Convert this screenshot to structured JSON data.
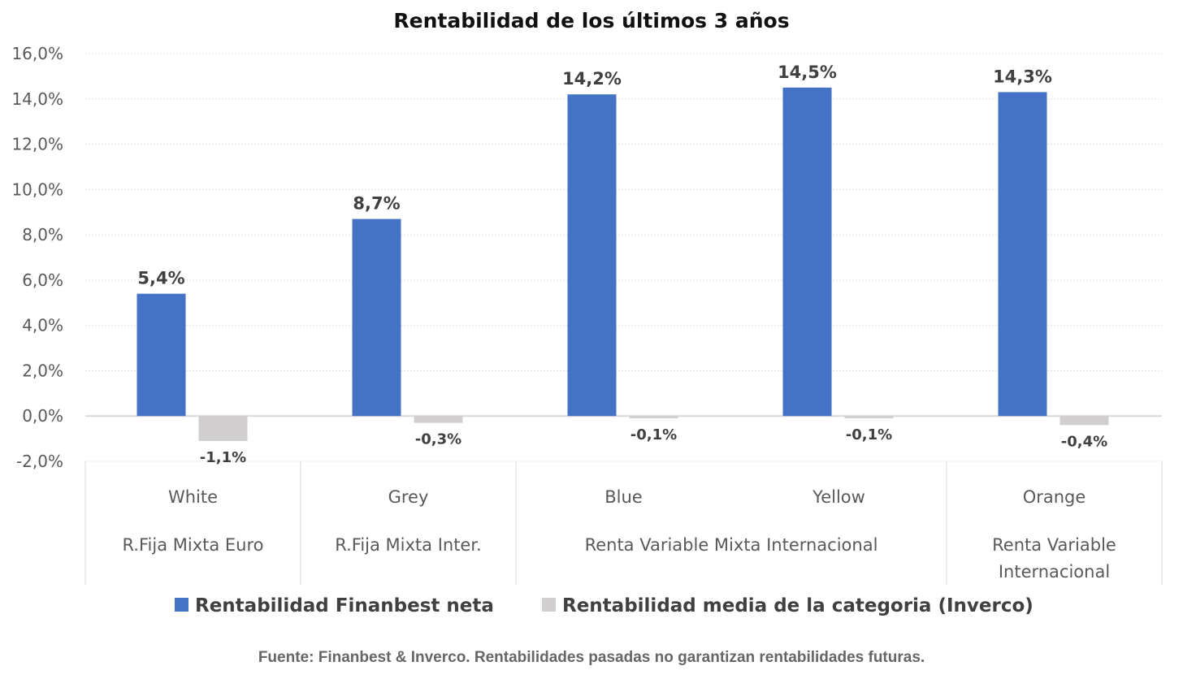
{
  "chart_data": {
    "type": "bar",
    "title": "Rentabilidad de los últimos 3 años",
    "categories": [
      "White",
      "Grey",
      "Blue",
      "Yellow",
      "Orange"
    ],
    "category_groups": [
      {
        "label": [
          "R.Fija Mixta Euro"
        ],
        "members": [
          "White"
        ]
      },
      {
        "label": [
          "R.Fija Mixta Inter."
        ],
        "members": [
          "Grey"
        ]
      },
      {
        "label": [
          "Renta Variable Mixta Internacional"
        ],
        "members": [
          "Blue",
          "Yellow"
        ]
      },
      {
        "label": [
          "Renta Variable",
          "Internacional"
        ],
        "members": [
          "Orange"
        ]
      }
    ],
    "series": [
      {
        "name": "Rentabilidad Finanbest neta",
        "color": "#4472C4",
        "values": [
          5.4,
          8.7,
          14.2,
          14.5,
          14.3
        ],
        "labels": [
          "5,4%",
          "8,7%",
          "14,2%",
          "14,5%",
          "14,3%"
        ]
      },
      {
        "name": "Rentabilidad media de la categoria (Inverco)",
        "color": "#D0CECE",
        "values": [
          -1.1,
          -0.3,
          -0.1,
          -0.1,
          -0.4
        ],
        "labels": [
          "-1,1%",
          "-0,3%",
          "-0,1%",
          "-0,1%",
          "-0,4%"
        ]
      }
    ],
    "ylim": [
      -2,
      16
    ],
    "yticks": [
      "-2,0%",
      "0,0%",
      "2,0%",
      "4,0%",
      "6,0%",
      "8,0%",
      "10,0%",
      "12,0%",
      "14,0%",
      "16,0%"
    ],
    "grid": true,
    "legend_position": "bottom"
  },
  "footer": "Fuente: Finanbest & Inverco. Rentabilidades pasadas no garantizan rentabilidades futuras."
}
